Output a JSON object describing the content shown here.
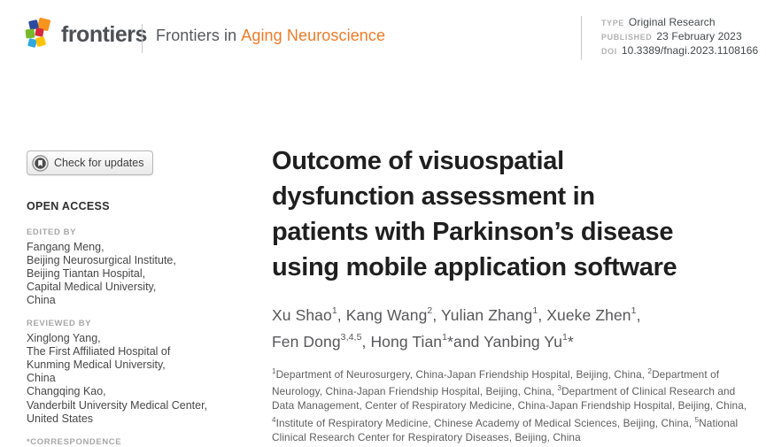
{
  "header": {
    "brand": "frontiers",
    "journal_prefix": "Frontiers in",
    "journal_name": "Aging Neuroscience",
    "accent_color": "#ee7b28",
    "meta": [
      {
        "label": "TYPE",
        "value": "Original Research"
      },
      {
        "label": "PUBLISHED",
        "value": "23 February 2023"
      },
      {
        "label": "DOI",
        "value": "10.3389/fnagi.2023.1108166"
      }
    ]
  },
  "sidebar": {
    "check_updates_label": "Check for updates",
    "open_access_label": "OPEN ACCESS",
    "edited_by": {
      "label": "EDITED BY",
      "lines": [
        "Fangang Meng,",
        "Beijing Neurosurgical Institute,",
        "Beijing Tiantan Hospital,",
        "Capital Medical University,",
        "China"
      ]
    },
    "reviewed_by": {
      "label": "REVIEWED BY",
      "lines": [
        "Xinglong Yang,",
        "The First Affiliated Hospital of",
        "Kunming Medical University,",
        "China",
        "Changqing Kao,",
        "Vanderbilt University Medical Center,",
        "United States"
      ]
    },
    "correspondence_label": "*CORRESPONDENCE"
  },
  "article": {
    "title_lines": [
      "Outcome of visuospatial",
      "dysfunction assessment in",
      "patients with Parkinson’s disease",
      "using mobile application software"
    ],
    "authors_lines": [
      [
        {
          "t": "Xu Shao"
        },
        {
          "s": "1"
        },
        {
          "t": ", Kang Wang"
        },
        {
          "s": "2"
        },
        {
          "t": ", Yulian Zhang"
        },
        {
          "s": "1"
        },
        {
          "t": ", Xueke Zhen"
        },
        {
          "s": "1"
        },
        {
          "t": ","
        }
      ],
      [
        {
          "t": "Fen Dong"
        },
        {
          "s": "3,4,5"
        },
        {
          "t": ", Hong Tian"
        },
        {
          "s": "1"
        },
        {
          "t": "*and Yanbing Yu"
        },
        {
          "s": "1"
        },
        {
          "t": "*"
        }
      ]
    ],
    "affiliations_segments": [
      {
        "s": "1"
      },
      {
        "t": "Department of Neurosurgery, China-Japan Friendship Hospital, Beijing, China, "
      },
      {
        "s": "2"
      },
      {
        "t": "Department of Neurology, China-Japan Friendship Hospital, Beijing, China, "
      },
      {
        "s": "3"
      },
      {
        "t": "Department of Clinical Research and Data Management, Center of Respiratory Medicine, China-Japan Friendship Hospital, Beijing, China, "
      },
      {
        "s": "4"
      },
      {
        "t": "Institute of Respiratory Medicine, Chinese Academy of Medical Sciences, Beijing, China, "
      },
      {
        "s": "5"
      },
      {
        "t": "National Clinical Research Center for Respiratory Diseases, Beijing, China"
      }
    ]
  }
}
